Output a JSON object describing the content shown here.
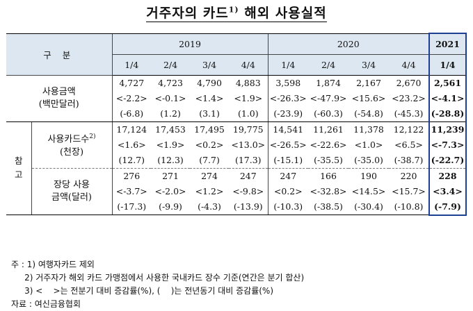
{
  "title": "거주자의 카드",
  "title_sup": "1)",
  "title_rest": " 해외 사용실적",
  "header": {
    "category": "구  분",
    "years": [
      "2019",
      "2020",
      "2021"
    ],
    "quarters": [
      "1/4",
      "2/4",
      "3/4",
      "4/4",
      "1/4",
      "2/4",
      "3/4",
      "4/4",
      "1/4"
    ]
  },
  "side_label": "참\n고",
  "groups": [
    {
      "label_line1": "사용금액",
      "label_line2": "(백만달러)",
      "rows": [
        [
          "4,727",
          "4,723",
          "4,790",
          "4,883",
          "3,598",
          "1,874",
          "2,167",
          "2,670",
          "2,561"
        ],
        [
          "<-2.2>",
          "<-0.1>",
          "<1.4>",
          "<1.9>",
          "<-26.3>",
          "<-47.9>",
          "<15.6>",
          "<23.2>",
          "<-4.1>"
        ],
        [
          "(-6.8)",
          "(1.2)",
          "(3.1)",
          "(1.0)",
          "(-23.9)",
          "(-60.3)",
          "(-54.8)",
          "(-45.3)",
          "(-28.8)"
        ]
      ]
    },
    {
      "label_line1": "사용카드수",
      "label_sup": "2)",
      "label_line2": "(천장)",
      "rows": [
        [
          "17,124",
          "17,453",
          "17,495",
          "19,775",
          "14,541",
          "11,261",
          "11,378",
          "12,122",
          "11,239"
        ],
        [
          "<1.6>",
          "<1.9>",
          "<0.2>",
          "<13.0>",
          "<-26.5>",
          "<-22.6>",
          "<1.0>",
          "<6.5>",
          "<-7.3>"
        ],
        [
          "(12.7)",
          "(12.3)",
          "(7.7)",
          "(17.3)",
          "(-15.1)",
          "(-35.5)",
          "(-35.0)",
          "(-38.7)",
          "(-22.7)"
        ]
      ]
    },
    {
      "label_line1": "장당 사용",
      "label_line2": "금액(달러)",
      "rows": [
        [
          "276",
          "271",
          "274",
          "247",
          "247",
          "166",
          "190",
          "220",
          "228"
        ],
        [
          "<-3.7>",
          "<-2.0>",
          "<1.2>",
          "<-9.8>",
          "<0.2>",
          "<-32.8>",
          "<14.5>",
          "<15.7>",
          "<3.4>"
        ],
        [
          "(-17.3)",
          "(-9.9)",
          "(-4.3)",
          "(-13.9)",
          "(-10.3)",
          "(-38.5)",
          "(-30.4)",
          "(-10.8)",
          "(-7.9)"
        ]
      ]
    }
  ],
  "notes": [
    "주 : 1) 여행자카드 제외",
    "     2) 거주자가 해외 카드 가맹점에서 사용한 국내카드 장수 기준(연간은 분기 합산)",
    "     3) <    >는 전분기 대비 증감률(%), (    )는 전년동기 대비 증감률(%)",
    "자료 : 여신금융협회"
  ]
}
